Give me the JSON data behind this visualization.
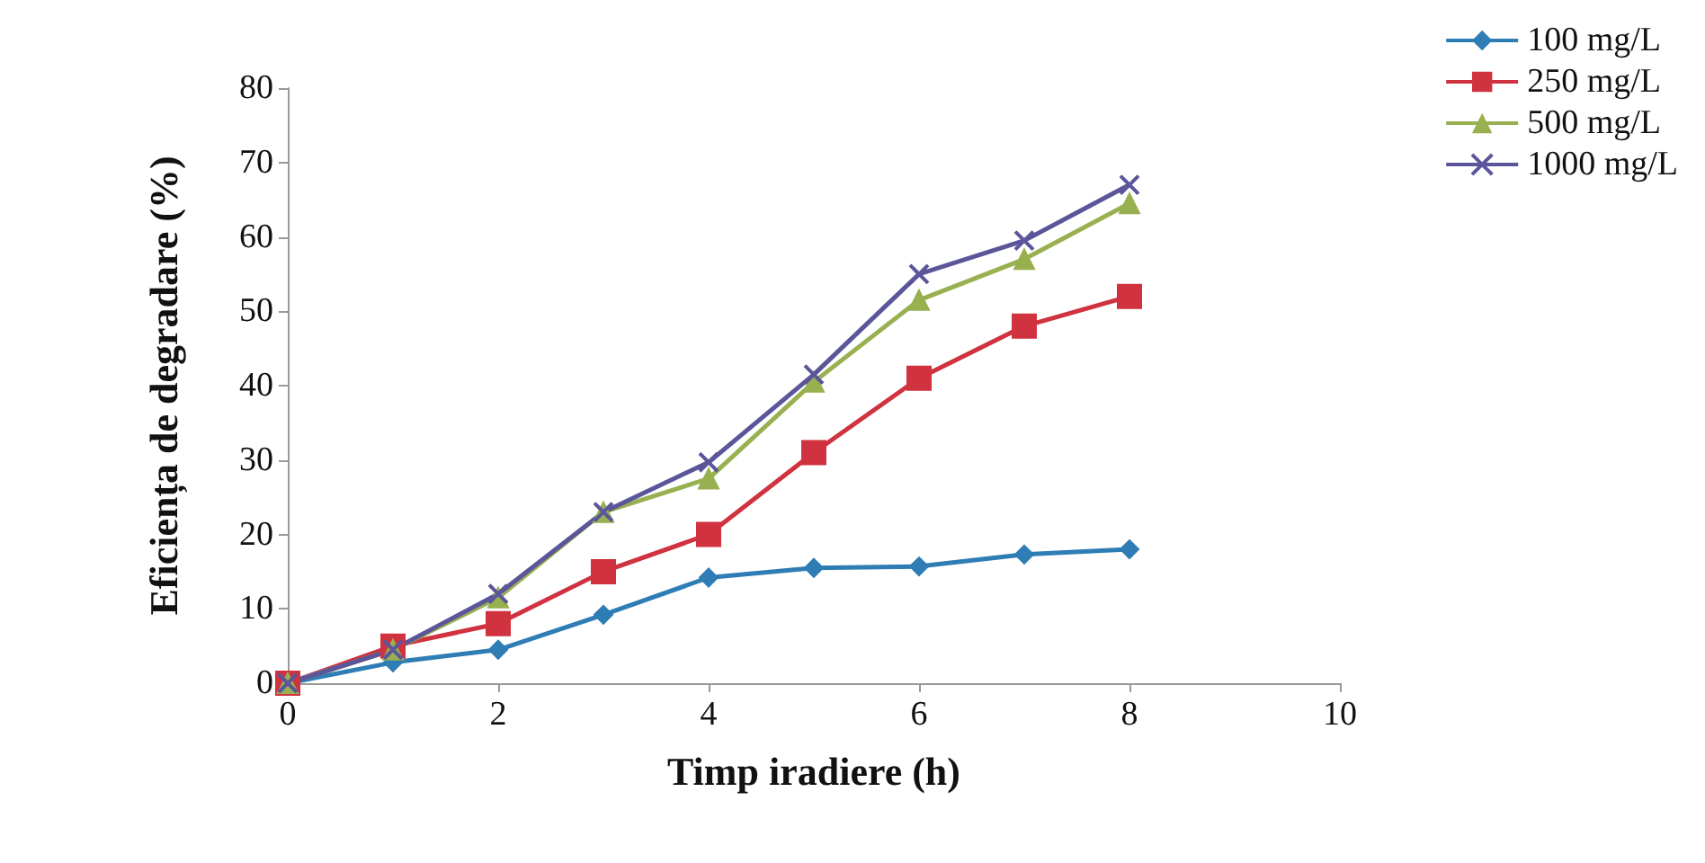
{
  "chart_data": {
    "type": "line",
    "xlabel": "Timp iradiere (h)",
    "ylabel": "Eficiența de degradare (%)",
    "x": [
      0,
      1,
      2,
      3,
      4,
      5,
      6,
      7,
      8
    ],
    "series": [
      {
        "name": "100 mg/L",
        "color": "#2e7db5",
        "marker": "diamond",
        "values": [
          0,
          2.8,
          4.5,
          9.2,
          14.2,
          15.5,
          15.7,
          17.3,
          18
        ]
      },
      {
        "name": "250 mg/L",
        "color": "#d0323f",
        "marker": "square",
        "values": [
          0,
          5,
          8,
          15,
          20,
          31,
          41,
          48,
          52
        ]
      },
      {
        "name": "500 mg/L",
        "color": "#98b050",
        "marker": "triangle",
        "values": [
          0,
          4.5,
          11.5,
          23,
          27.5,
          40.5,
          51.5,
          57,
          64.5
        ]
      },
      {
        "name": "1000 mg/L",
        "color": "#5b569a",
        "marker": "cross",
        "values": [
          0,
          4.5,
          12,
          23,
          29.7,
          41.5,
          55,
          59.5,
          67
        ]
      }
    ],
    "xlim": [
      0,
      10
    ],
    "xticks": [
      0,
      2,
      4,
      6,
      8,
      10
    ],
    "ylim": [
      0,
      80
    ],
    "yticks": [
      0,
      10,
      20,
      30,
      40,
      50,
      60,
      70,
      80
    ],
    "grid": false,
    "legend": "top right",
    "line_style": "solid"
  }
}
